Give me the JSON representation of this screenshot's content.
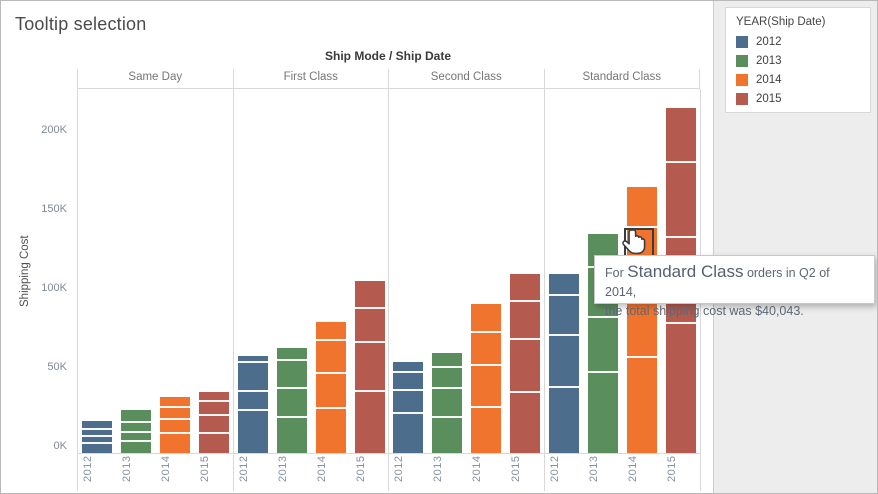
{
  "page_title": "Tooltip selection",
  "legend": {
    "title": "YEAR(Ship Date)",
    "items": [
      {
        "label": "2012",
        "color": "#4c6e8c"
      },
      {
        "label": "2013",
        "color": "#5b8e5d"
      },
      {
        "label": "2014",
        "color": "#f0742e"
      },
      {
        "label": "2015",
        "color": "#b45a4f"
      }
    ]
  },
  "chart_data": {
    "type": "bar",
    "stacked": true,
    "column_header": "Ship Mode / Ship Date",
    "ylabel": "Shipping Cost",
    "ytick_labels": [
      "0K",
      "50K",
      "100K",
      "150K",
      "200K"
    ],
    "ytick_values_k": [
      0,
      50,
      100,
      150,
      200
    ],
    "ylim_k": [
      0,
      230
    ],
    "grid": false,
    "units": "USD thousands",
    "legend_position": "top-right",
    "quarter_order_top_to_bottom": [
      "Q1",
      "Q2",
      "Q3",
      "Q4"
    ],
    "panes": [
      {
        "label": "Same Day",
        "bars": [
          {
            "year": "2012",
            "quarters_k": [
              5.5,
              4.5,
              4.5,
              5.5
            ]
          },
          {
            "year": "2013",
            "quarters_k": [
              8,
              6.5,
              5.5,
              7
            ]
          },
          {
            "year": "2014",
            "quarters_k": [
              7,
              7.5,
              9,
              12
            ]
          },
          {
            "year": "2015",
            "quarters_k": [
              6.5,
              9,
              11,
              12
            ]
          }
        ]
      },
      {
        "label": "First Class",
        "bars": [
          {
            "year": "2012",
            "quarters_k": [
              4.5,
              18.5,
              12,
              26.5
            ]
          },
          {
            "year": "2013",
            "quarters_k": [
              8,
              18,
              18.5,
              22
            ]
          },
          {
            "year": "2014",
            "quarters_k": [
              12,
              21,
              22,
              28
            ]
          },
          {
            "year": "2015",
            "quarters_k": [
              18,
              21.5,
              31,
              38.5
            ]
          }
        ]
      },
      {
        "label": "Second Class",
        "bars": [
          {
            "year": "2012",
            "quarters_k": [
              7,
              11.5,
              14.5,
              24.5
            ]
          },
          {
            "year": "2013",
            "quarters_k": [
              9.5,
              13.5,
              18.5,
              22
            ]
          },
          {
            "year": "2014",
            "quarters_k": [
              18.5,
              21,
              26.5,
              28.5
            ]
          },
          {
            "year": "2015",
            "quarters_k": [
              18,
              24,
              33.5,
              37.5
            ]
          }
        ]
      },
      {
        "label": "Standard Class",
        "bars": [
          {
            "year": "2012",
            "quarters_k": [
              14,
              25.5,
              33,
              41
            ]
          },
          {
            "year": "2013",
            "quarters_k": [
              21.5,
              31.5,
              35,
              50.5
            ]
          },
          {
            "year": "2014",
            "quarters_k": [
              26,
              40.043,
              42.4,
              60
            ]
          },
          {
            "year": "2015",
            "quarters_k": [
              35,
              47.5,
              54.5,
              81.5
            ]
          }
        ]
      }
    ]
  },
  "selection": {
    "pane": "Standard Class",
    "year": "2014",
    "quarter": "Q2",
    "value": "$40,043"
  },
  "tooltip": {
    "prefix": "For ",
    "emphasis": "Standard Class",
    "line1_suffix": " orders in Q2 of 2014,",
    "line2": "the total shipping cost was $40,043."
  }
}
